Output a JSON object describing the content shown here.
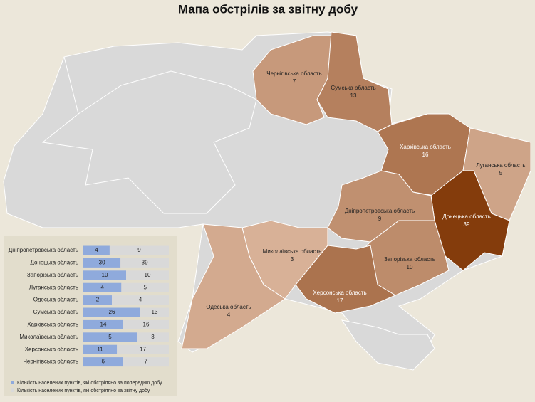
{
  "title": "Мапа обстрілів за звітну добу",
  "map": {
    "regions": [
      {
        "name": "Чернігівська область",
        "value": 7
      },
      {
        "name": "Сумська область",
        "value": 13
      },
      {
        "name": "Харківська область",
        "value": 16
      },
      {
        "name": "Луганська область",
        "value": 5
      },
      {
        "name": "Донецька область",
        "value": 39
      },
      {
        "name": "Дніпропетровська область",
        "value": 9
      },
      {
        "name": "Запорізька область",
        "value": 10
      },
      {
        "name": "Херсонська область",
        "value": 17
      },
      {
        "name": "Миколаївська область",
        "value": 3
      },
      {
        "name": "Одеська область",
        "value": 4
      }
    ]
  },
  "chart_data": {
    "type": "bar",
    "stacked_percent": true,
    "categories": [
      "Дніпропетровська область",
      "Донецька область",
      "Запорізька область",
      "Луганська область",
      "Одеська область",
      "Сумська область",
      "Харківська область",
      "Миколаївська область",
      "Херсонська область",
      "Чернігівська область"
    ],
    "series": [
      {
        "name": "Кількість населених пунктів, які обстріляно за попередню добу",
        "color": "#8faadc",
        "values": [
          4,
          30,
          10,
          4,
          2,
          26,
          14,
          5,
          11,
          6
        ]
      },
      {
        "name": "Кількість населених пунктів, які обстріляно за звітну добу",
        "color": "#d9d9d9",
        "values": [
          9,
          39,
          10,
          5,
          4,
          13,
          16,
          3,
          17,
          7
        ]
      }
    ]
  }
}
